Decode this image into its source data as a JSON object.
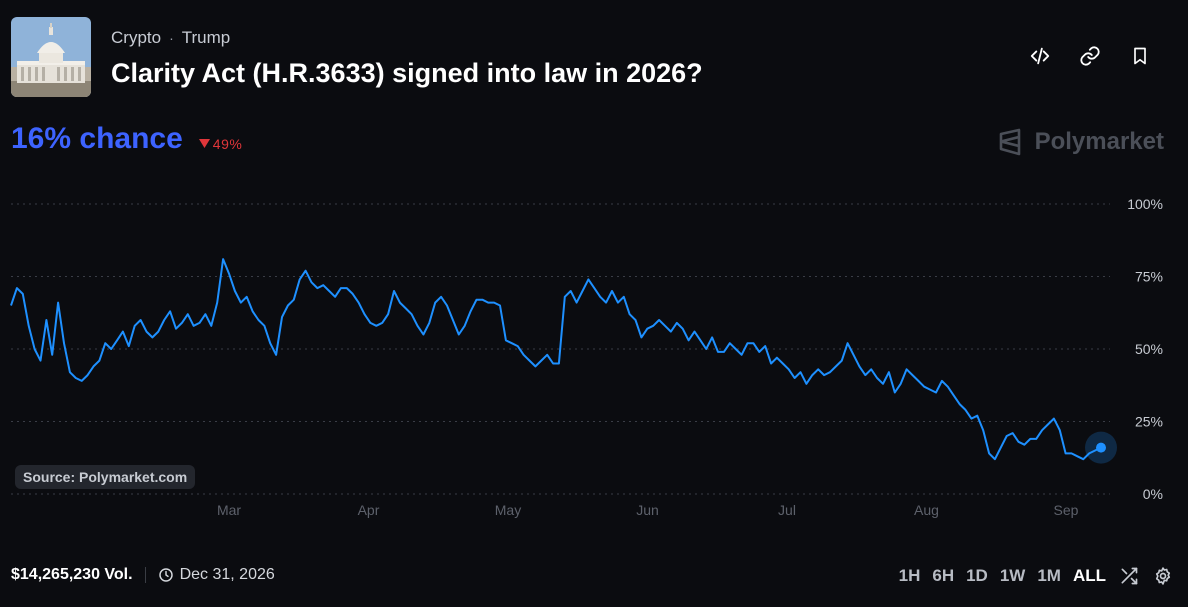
{
  "market": {
    "image_alt": "US Capitol building",
    "category": "Crypto",
    "subcategory": "Trump",
    "title": "Clarity Act (H.R.3633) signed into law in 2026?",
    "chance_text": "16% chance",
    "change_text": "49%",
    "brand": "Polymarket",
    "source_label": "Source: Polymarket.com",
    "volume": "$14,265,230 Vol.",
    "end_date": "Dec 31, 2026"
  },
  "actions": {
    "embed_icon": "code-icon",
    "link_icon": "link-icon",
    "bookmark_icon": "bookmark-icon"
  },
  "time_ranges": [
    "1H",
    "6H",
    "1D",
    "1W",
    "1M",
    "ALL"
  ],
  "selected_range": "ALL",
  "colors": {
    "background": "#0b0c10",
    "line": "#1e90ff",
    "chance": "#3d63ff",
    "decline": "#e0363a"
  },
  "chart_data": {
    "type": "line",
    "x_tick_labels": [
      "Mar",
      "Apr",
      "May",
      "Jun",
      "Jul",
      "Aug",
      "Sep"
    ],
    "y_tick_labels": [
      "100%",
      "75%",
      "50%",
      "25%",
      "0%"
    ],
    "ylim": [
      0,
      100
    ],
    "grid": "dotted horizontal",
    "series": [
      {
        "values": [
          65,
          71,
          69,
          58,
          50,
          46,
          60,
          48,
          66,
          52,
          42,
          40,
          39,
          41,
          44,
          46,
          52,
          50,
          53,
          56,
          51,
          58,
          60,
          56,
          54,
          56,
          60,
          63,
          57,
          59,
          62,
          58,
          59,
          62,
          58,
          66,
          81,
          76,
          70,
          66,
          68,
          63,
          60,
          58,
          52,
          48,
          61,
          65,
          67,
          74,
          77,
          73,
          71,
          72,
          70,
          68,
          71,
          71,
          69,
          66,
          62,
          59,
          58,
          59,
          62,
          70,
          66,
          64,
          62,
          58,
          55,
          59,
          66,
          68,
          65,
          60,
          55,
          58,
          63,
          67,
          67,
          66,
          66,
          65,
          53,
          52,
          51,
          48,
          46,
          44,
          46,
          48,
          45,
          45,
          68,
          70,
          66,
          70,
          74,
          71,
          68,
          66,
          70,
          66,
          68,
          62,
          60,
          54,
          57,
          58,
          60,
          58,
          56,
          59,
          57,
          53,
          56,
          53,
          50,
          54,
          49,
          49,
          52,
          50,
          48,
          52,
          52,
          49,
          51,
          45,
          47,
          45,
          43,
          40,
          42,
          38,
          41,
          43,
          41,
          42,
          44,
          46,
          52,
          48,
          44,
          41,
          43,
          40,
          38,
          42,
          35,
          38,
          43,
          41,
          39,
          37,
          36,
          35,
          39,
          37,
          34,
          31,
          29,
          26,
          27,
          22,
          14,
          12,
          16,
          20,
          21,
          18,
          17,
          19,
          19,
          22,
          24,
          26,
          22,
          14,
          14,
          13,
          12,
          14,
          15,
          16
        ]
      }
    ],
    "current_value": 16
  }
}
